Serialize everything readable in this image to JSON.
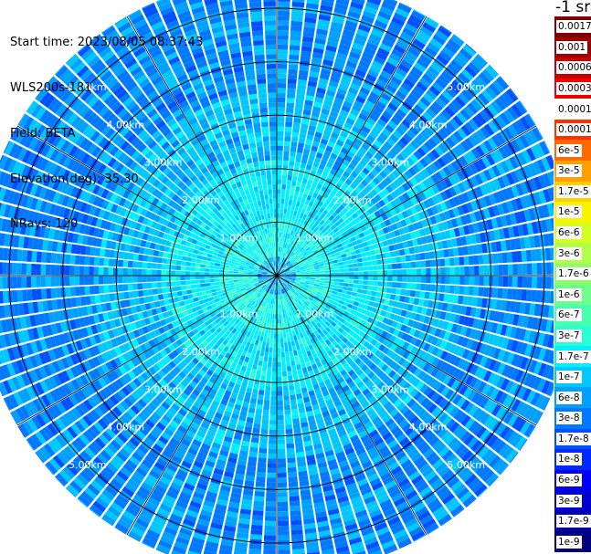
{
  "header": {
    "start_time": "Start time: 2023/08/05 08:37:43",
    "device": "WLS200s-181",
    "field": "Field: BETA",
    "elevation": "Elevation(deg): 35.30",
    "nrays": "NRays: 120"
  },
  "colorbar": {
    "title": "-1 sr",
    "labels": [
      "0.0017",
      "0.001",
      "0.0006",
      "0.0003",
      "0.00017",
      "0.0001",
      "6e-5",
      "3e-5",
      "1.7e-5",
      "1e-5",
      "6e-6",
      "3e-6",
      "1.7e-6",
      "1e-6",
      "6e-7",
      "3e-7",
      "1.7e-7",
      "1e-7",
      "6e-8",
      "3e-8",
      "1.7e-8",
      "1e-8",
      "6e-9",
      "3e-9",
      "1.7e-9",
      "1e-9"
    ],
    "colors": [
      "#7f0000",
      "#a00000",
      "#c80000",
      "#f00000",
      "#ffffff",
      "#ff3000",
      "#ff6a00",
      "#ffa000",
      "#ffd000",
      "#f8f400",
      "#d2ff22",
      "#b0ff46",
      "#8cff6a",
      "#6cff8a",
      "#48ffb0",
      "#28ffd4",
      "#00f0ff",
      "#00c8ff",
      "#00a0ff",
      "#0078ff",
      "#0050ff",
      "#0028ff",
      "#0000f8",
      "#0000d0",
      "#0000a8",
      "#000080"
    ]
  },
  "chart_data": {
    "type": "heatmap",
    "projection": "polar (PPI scan)",
    "field": "BETA",
    "elevation_deg": 35.3,
    "n_rays": 120,
    "range_rings_km": [
      1.0,
      2.0,
      3.0,
      4.0,
      5.0
    ],
    "ring_labels": [
      "1.00km",
      "2.00km",
      "3.00km",
      "4.00km",
      "5.00km"
    ],
    "azimuth_lines_deg": [
      0,
      30,
      60,
      90,
      120,
      150,
      180,
      210,
      240,
      270,
      300,
      330
    ],
    "max_range_km": 5.6,
    "colorscale": "log",
    "colorbar_min": 1e-09,
    "colorbar_max": 0.0017,
    "dominant_value_near_center": 2e-07,
    "dominant_value_outer": 1e-08
  }
}
